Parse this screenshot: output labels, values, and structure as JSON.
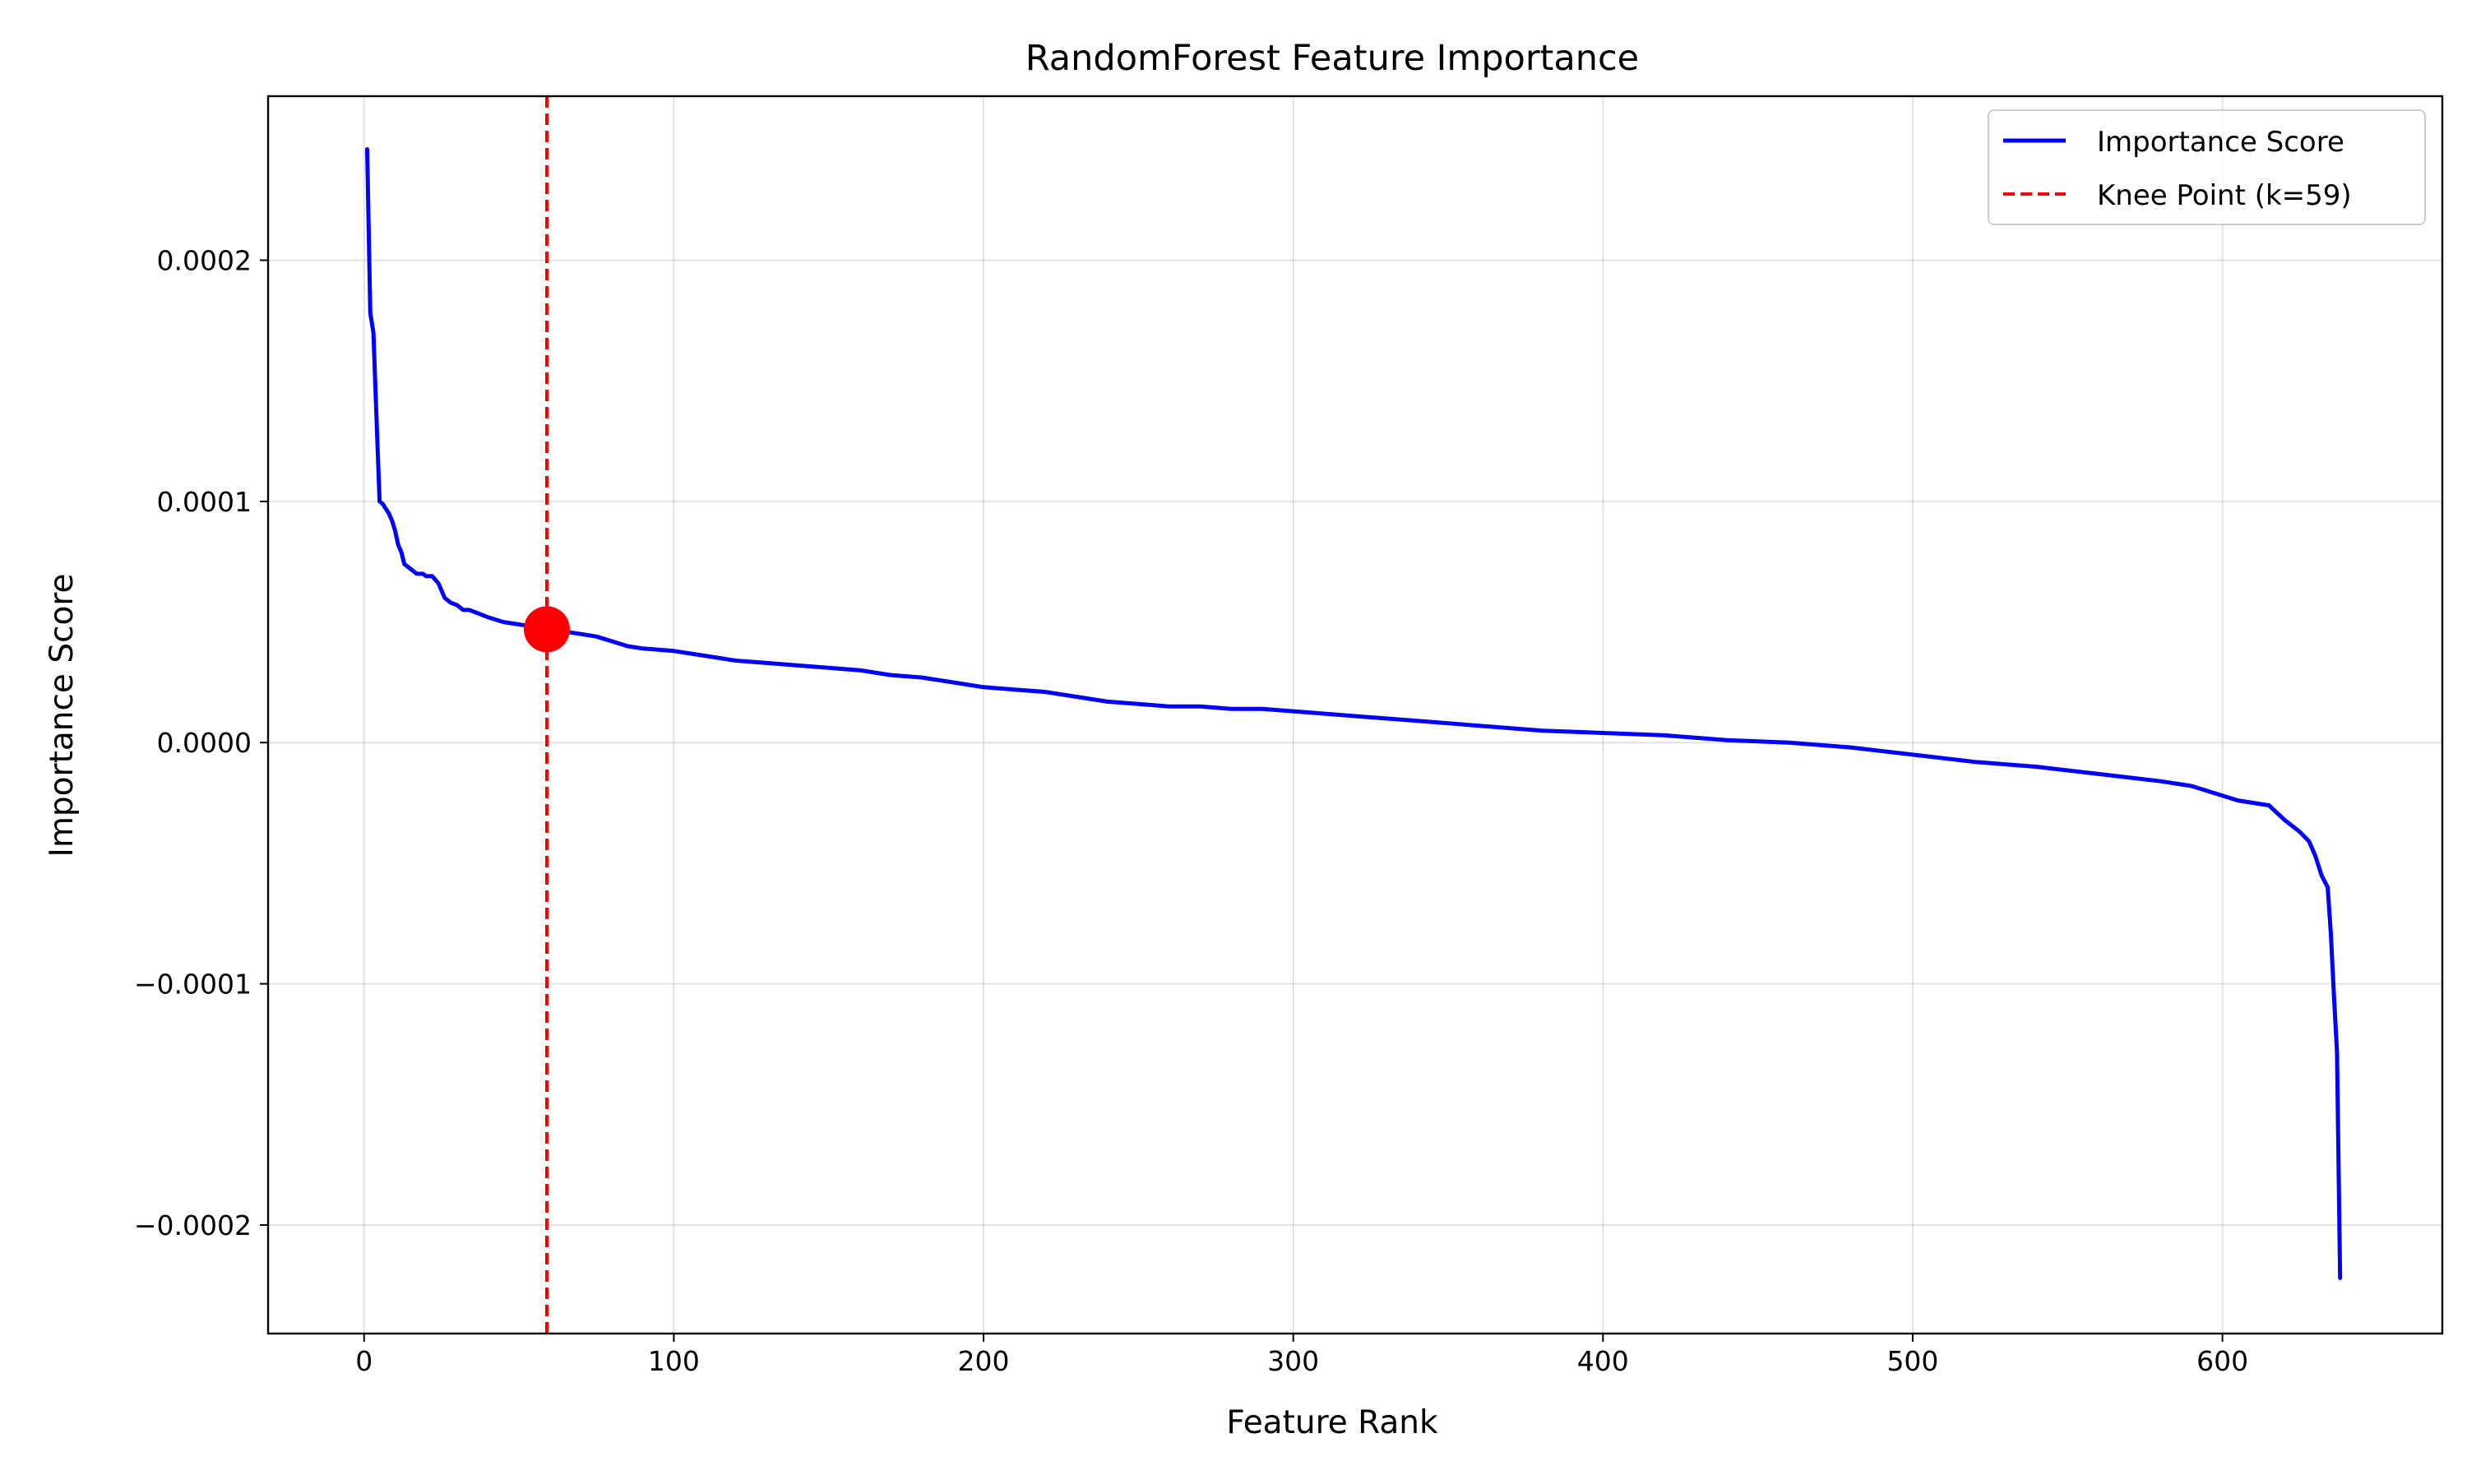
{
  "chart_data": {
    "type": "line",
    "title": "RandomForest Feature Importance",
    "xlabel": "Feature Rank",
    "ylabel": "Importance Score",
    "xlim": [
      -31,
      671
    ],
    "ylim": [
      -0.000245,
      0.000268
    ],
    "xticks": [
      0,
      100,
      200,
      300,
      400,
      500,
      600
    ],
    "xtick_labels": [
      "0",
      "100",
      "200",
      "300",
      "400",
      "500",
      "600"
    ],
    "yticks": [
      -0.0002,
      -0.0001,
      0.0,
      0.0001,
      0.0002
    ],
    "ytick_labels": [
      "−0.0002",
      "−0.0001",
      "0.0000",
      "0.0001",
      "0.0002"
    ],
    "grid": true,
    "legend": {
      "position": "top-right",
      "entries": [
        "Importance Score",
        "Knee Point (k=59)"
      ]
    },
    "series": [
      {
        "name": "Importance Score",
        "color": "#0000ff",
        "style": "solid",
        "x": [
          1,
          2,
          3,
          4,
          5,
          6,
          7,
          8,
          9,
          10,
          11,
          12,
          13,
          15,
          17,
          19,
          20,
          22,
          24,
          26,
          28,
          30,
          32,
          34,
          36,
          38,
          40,
          45,
          50,
          55,
          59,
          65,
          70,
          75,
          80,
          85,
          90,
          100,
          110,
          120,
          130,
          140,
          150,
          160,
          170,
          180,
          190,
          200,
          210,
          220,
          230,
          240,
          250,
          260,
          270,
          280,
          290,
          300,
          320,
          340,
          360,
          380,
          400,
          420,
          440,
          460,
          480,
          500,
          520,
          540,
          560,
          580,
          590,
          600,
          605,
          610,
          615,
          620,
          625,
          628,
          630,
          632,
          634,
          635,
          636,
          637,
          638
        ],
        "values": [
          0.000246,
          0.000178,
          0.00017,
          0.000135,
          0.0001,
          9.9e-05,
          9.7e-05,
          9.5e-05,
          9.2e-05,
          8.8e-05,
          8.2e-05,
          7.9e-05,
          7.4e-05,
          7.2e-05,
          7e-05,
          7e-05,
          6.9e-05,
          6.9e-05,
          6.6e-05,
          6e-05,
          5.8e-05,
          5.7e-05,
          5.5e-05,
          5.5e-05,
          5.4e-05,
          5.3e-05,
          5.2e-05,
          5e-05,
          4.9e-05,
          4.8e-05,
          4.7e-05,
          4.6e-05,
          4.5e-05,
          4.4e-05,
          4.2e-05,
          4e-05,
          3.9e-05,
          3.8e-05,
          3.6e-05,
          3.4e-05,
          3.3e-05,
          3.2e-05,
          3.1e-05,
          3e-05,
          2.8e-05,
          2.7e-05,
          2.5e-05,
          2.3e-05,
          2.2e-05,
          2.1e-05,
          1.9e-05,
          1.7e-05,
          1.6e-05,
          1.5e-05,
          1.5e-05,
          1.4e-05,
          1.4e-05,
          1.3e-05,
          1.1e-05,
          9e-06,
          7e-06,
          5e-06,
          4e-06,
          3e-06,
          1e-06,
          0.0,
          -2e-06,
          -5e-06,
          -8e-06,
          -1e-05,
          -1.3e-05,
          -1.6e-05,
          -1.8e-05,
          -2.2e-05,
          -2.4e-05,
          -2.5e-05,
          -2.6e-05,
          -3.2e-05,
          -3.7e-05,
          -4.1e-05,
          -4.7e-05,
          -5.5e-05,
          -6e-05,
          -7.9e-05,
          -0.000105,
          -0.000128,
          -0.000222
        ]
      },
      {
        "name": "Knee Point (k=59)",
        "color": "#ff0000",
        "style": "dashed",
        "x_value": 59
      }
    ],
    "knee_point": {
      "x": 59,
      "y": 4.7e-05,
      "color": "#ff0000"
    }
  }
}
